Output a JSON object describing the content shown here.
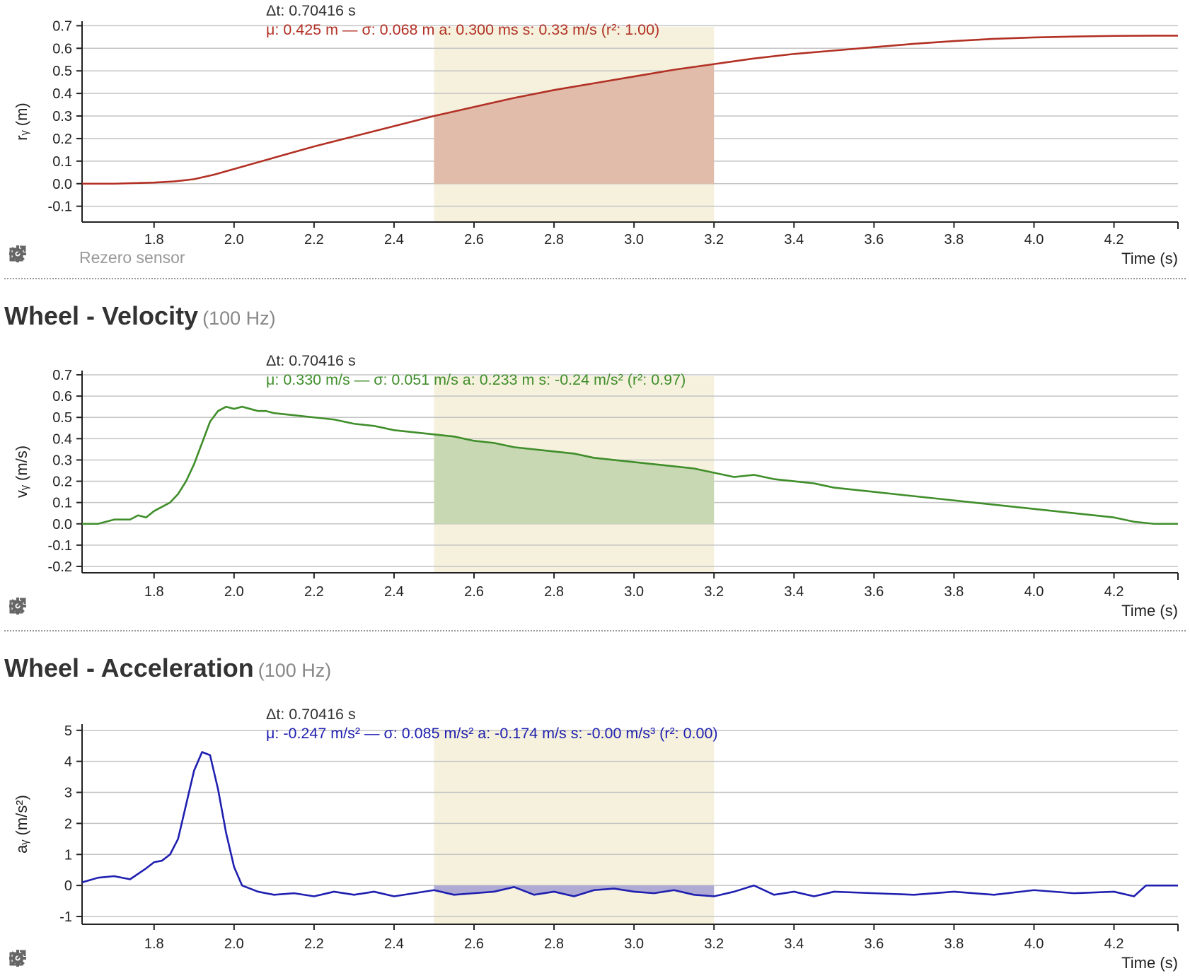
{
  "toolbar": {
    "settings_icon": "gear-icon",
    "popout_icon": "external-link-icon",
    "rezero_label": "Rezero sensor"
  },
  "panels": [
    {
      "id": "position",
      "title": "",
      "rate": "",
      "stats": {
        "dt": "Δt: 0.70416 s",
        "summary": "μ: 0.425 m — σ: 0.068 m   a: 0.300 ms   s: 0.33 m/s (r²: 1.00)"
      },
      "color": "#b23024",
      "fill_color": "#e1bcaa",
      "has_rezero": true
    },
    {
      "id": "velocity",
      "title": "Wheel - Velocity",
      "rate": "(100 Hz)",
      "stats": {
        "dt": "Δt: 0.70416 s",
        "summary": "μ: 0.330 m/s — σ: 0.051 m/s   a: 0.233 m   s: -0.24 m/s² (r²: 0.97)"
      },
      "color": "#3f8e2a",
      "fill_color": "#c8d8b3",
      "has_rezero": false
    },
    {
      "id": "acceleration",
      "title": "Wheel - Acceleration",
      "rate": "(100 Hz)",
      "stats": {
        "dt": "Δt: 0.70416 s",
        "summary": "μ: -0.247 m/s² — σ: 0.085 m/s²   a: -0.174 m/s   s: -0.00 m/s³ (r²: 0.00)"
      },
      "color": "#1f1fb0",
      "fill_color": "#aeaad4",
      "has_rezero": false
    }
  ],
  "chart_data": [
    {
      "type": "line",
      "xlabel": "Time (s)",
      "ylabel": "rᵧ (m)",
      "xlim": [
        1.62,
        4.36
      ],
      "ylim": [
        -0.17,
        0.72
      ],
      "xticks": [
        "1.8",
        "2.0",
        "2.2",
        "2.4",
        "2.6",
        "2.8",
        "3.0",
        "3.2",
        "3.4",
        "3.6",
        "3.8",
        "4.0",
        "4.2"
      ],
      "yticks": [
        "0.7",
        "0.6",
        "0.5",
        "0.4",
        "0.3",
        "0.2",
        "0.1",
        "0.0",
        "-0.1"
      ],
      "selection": [
        2.5,
        3.2
      ],
      "grid": true,
      "x": [
        1.62,
        1.7,
        1.8,
        1.85,
        1.9,
        1.95,
        2.0,
        2.1,
        2.2,
        2.3,
        2.4,
        2.5,
        2.6,
        2.7,
        2.8,
        2.9,
        3.0,
        3.1,
        3.2,
        3.3,
        3.4,
        3.5,
        3.6,
        3.7,
        3.8,
        3.9,
        4.0,
        4.1,
        4.2,
        4.3,
        4.36
      ],
      "y": [
        0.0,
        0.0,
        0.005,
        0.01,
        0.02,
        0.04,
        0.065,
        0.115,
        0.165,
        0.21,
        0.255,
        0.3,
        0.34,
        0.38,
        0.415,
        0.445,
        0.475,
        0.505,
        0.53,
        0.555,
        0.575,
        0.59,
        0.605,
        0.62,
        0.632,
        0.642,
        0.648,
        0.652,
        0.655,
        0.656,
        0.656
      ]
    },
    {
      "type": "line",
      "xlabel": "Time (s)",
      "ylabel": "vᵧ (m/s)",
      "xlim": [
        1.62,
        4.36
      ],
      "ylim": [
        -0.23,
        0.72
      ],
      "xticks": [
        "1.8",
        "2.0",
        "2.2",
        "2.4",
        "2.6",
        "2.8",
        "3.0",
        "3.2",
        "3.4",
        "3.6",
        "3.8",
        "4.0",
        "4.2"
      ],
      "yticks": [
        "0.7",
        "0.6",
        "0.5",
        "0.4",
        "0.3",
        "0.2",
        "0.1",
        "0.0",
        "-0.1",
        "-0.2"
      ],
      "selection": [
        2.5,
        3.2
      ],
      "grid": true,
      "x": [
        1.62,
        1.66,
        1.7,
        1.74,
        1.76,
        1.78,
        1.8,
        1.82,
        1.84,
        1.86,
        1.88,
        1.9,
        1.92,
        1.94,
        1.96,
        1.98,
        2.0,
        2.02,
        2.04,
        2.06,
        2.08,
        2.1,
        2.15,
        2.2,
        2.25,
        2.3,
        2.35,
        2.4,
        2.45,
        2.5,
        2.55,
        2.6,
        2.65,
        2.7,
        2.75,
        2.8,
        2.85,
        2.9,
        2.95,
        3.0,
        3.05,
        3.1,
        3.15,
        3.2,
        3.25,
        3.3,
        3.35,
        3.4,
        3.45,
        3.5,
        3.55,
        3.6,
        3.65,
        3.7,
        3.75,
        3.8,
        3.85,
        3.9,
        3.95,
        4.0,
        4.05,
        4.1,
        4.15,
        4.2,
        4.25,
        4.3,
        4.36
      ],
      "y": [
        0.0,
        0.0,
        0.02,
        0.02,
        0.04,
        0.03,
        0.06,
        0.08,
        0.1,
        0.14,
        0.2,
        0.28,
        0.38,
        0.48,
        0.53,
        0.55,
        0.54,
        0.55,
        0.54,
        0.53,
        0.53,
        0.52,
        0.51,
        0.5,
        0.49,
        0.47,
        0.46,
        0.44,
        0.43,
        0.42,
        0.41,
        0.39,
        0.38,
        0.36,
        0.35,
        0.34,
        0.33,
        0.31,
        0.3,
        0.29,
        0.28,
        0.27,
        0.26,
        0.24,
        0.22,
        0.23,
        0.21,
        0.2,
        0.19,
        0.17,
        0.16,
        0.15,
        0.14,
        0.13,
        0.12,
        0.11,
        0.1,
        0.09,
        0.08,
        0.07,
        0.06,
        0.05,
        0.04,
        0.03,
        0.01,
        0.0,
        0.0
      ]
    },
    {
      "type": "line",
      "xlabel": "Time (s)",
      "ylabel": "aᵧ (m/s²)",
      "xlim": [
        1.62,
        4.36
      ],
      "ylim": [
        -1.25,
        5.2
      ],
      "xticks": [
        "1.8",
        "2.0",
        "2.2",
        "2.4",
        "2.6",
        "2.8",
        "3.0",
        "3.2",
        "3.4",
        "3.6",
        "3.8",
        "4.0",
        "4.2"
      ],
      "yticks": [
        "5",
        "4",
        "3",
        "2",
        "1",
        "0",
        "-1"
      ],
      "selection": [
        2.5,
        3.2
      ],
      "grid": true,
      "x": [
        1.62,
        1.66,
        1.7,
        1.74,
        1.78,
        1.8,
        1.82,
        1.84,
        1.86,
        1.88,
        1.9,
        1.92,
        1.94,
        1.96,
        1.98,
        2.0,
        2.02,
        2.06,
        2.1,
        2.15,
        2.2,
        2.25,
        2.3,
        2.35,
        2.4,
        2.45,
        2.5,
        2.55,
        2.6,
        2.65,
        2.7,
        2.75,
        2.8,
        2.85,
        2.9,
        2.95,
        3.0,
        3.05,
        3.1,
        3.15,
        3.2,
        3.25,
        3.3,
        3.35,
        3.4,
        3.45,
        3.5,
        3.6,
        3.7,
        3.8,
        3.9,
        4.0,
        4.1,
        4.2,
        4.25,
        4.28,
        4.36
      ],
      "y": [
        0.1,
        0.25,
        0.3,
        0.2,
        0.55,
        0.75,
        0.8,
        1.0,
        1.5,
        2.6,
        3.7,
        4.3,
        4.2,
        3.1,
        1.7,
        0.6,
        0.0,
        -0.2,
        -0.3,
        -0.25,
        -0.35,
        -0.2,
        -0.3,
        -0.2,
        -0.35,
        -0.25,
        -0.15,
        -0.3,
        -0.25,
        -0.2,
        -0.05,
        -0.3,
        -0.2,
        -0.35,
        -0.15,
        -0.1,
        -0.2,
        -0.25,
        -0.15,
        -0.3,
        -0.35,
        -0.2,
        0.0,
        -0.3,
        -0.2,
        -0.35,
        -0.2,
        -0.25,
        -0.3,
        -0.2,
        -0.3,
        -0.15,
        -0.25,
        -0.2,
        -0.35,
        0.0,
        0.0
      ]
    }
  ]
}
